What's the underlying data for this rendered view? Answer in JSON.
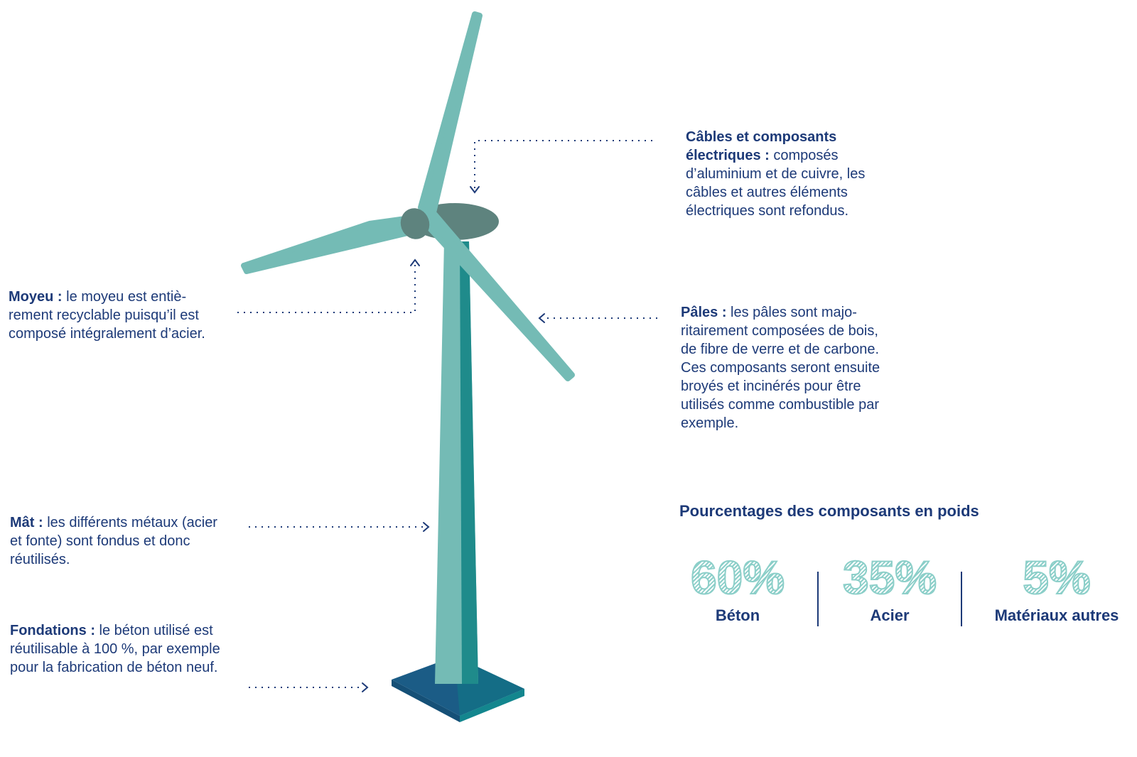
{
  "callouts": {
    "cables": {
      "title": "Câbles et composants électriques :",
      "text": "composés d’aluminium et de cuivre, les câbles et autres éléments électriques sont refondus."
    },
    "moyeu": {
      "title": "Moyeu :",
      "text": "le moyeu est entiè-rement recyclable puisqu’il est composé intégralement d’acier."
    },
    "pales": {
      "title": "Pâles :",
      "text": "les pâles sont majo-ritairement composées de bois, de fibre de verre et de carbone. Ces composants seront ensuite broyés et incinérés pour être utilisés comme combustible par exemple."
    },
    "mat": {
      "title": "Mât :",
      "text": "les différents métaux (acier et fonte) sont fondus et donc réutilisés."
    },
    "fondations": {
      "title": "Fondations :",
      "text": "le béton utilisé est réutilisable à 100 %, par exemple pour la fabrication de béton neuf."
    }
  },
  "stats": {
    "title": "Pourcentages des composants en poids",
    "items": [
      {
        "value": "60%",
        "label": "Béton"
      },
      {
        "value": "35%",
        "label": "Acier"
      },
      {
        "value": "5%",
        "label": "Matériaux autres"
      }
    ]
  },
  "colors": {
    "tower_light": "#74bbb5",
    "tower_dark": "#1f8b8b",
    "nacelle": "#5e837e",
    "base_top": "#1b5c86",
    "base_side": "#13868e",
    "text": "#1d3a78"
  }
}
